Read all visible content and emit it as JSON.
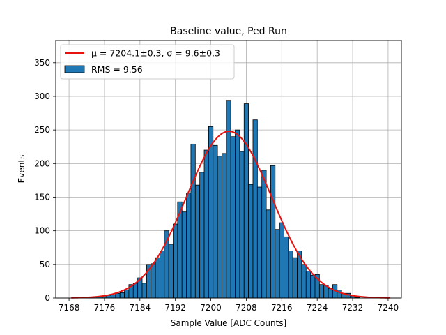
{
  "chart_data": {
    "type": "bar",
    "title": "Baseline value, Ped Run",
    "xlabel": "Sample Value [ADC Counts]",
    "ylabel": "Events",
    "xlim": [
      7165,
      7243
    ],
    "ylim": [
      0,
      383
    ],
    "xticks": [
      7168,
      7176,
      7184,
      7192,
      7200,
      7208,
      7216,
      7224,
      7232,
      7240
    ],
    "yticks": [
      0,
      50,
      100,
      150,
      200,
      250,
      300,
      350
    ],
    "grid": true,
    "legend_position": "upper-left",
    "colors": {
      "bars": "#1f77b4",
      "bar_edge": "#000000",
      "fit": "#e8130f",
      "grid": "#b0b0b0"
    },
    "histogram": {
      "name": "RMS = 9.56",
      "bin_width": 1,
      "bins": [
        {
          "x": 7170,
          "count": 1
        },
        {
          "x": 7171,
          "count": 1
        },
        {
          "x": 7172,
          "count": 1
        },
        {
          "x": 7173,
          "count": 1
        },
        {
          "x": 7174,
          "count": 2
        },
        {
          "x": 7175,
          "count": 2
        },
        {
          "x": 7176,
          "count": 3
        },
        {
          "x": 7177,
          "count": 4
        },
        {
          "x": 7178,
          "count": 5
        },
        {
          "x": 7179,
          "count": 7
        },
        {
          "x": 7180,
          "count": 8
        },
        {
          "x": 7181,
          "count": 12
        },
        {
          "x": 7182,
          "count": 20
        },
        {
          "x": 7183,
          "count": 22
        },
        {
          "x": 7184,
          "count": 30
        },
        {
          "x": 7185,
          "count": 22
        },
        {
          "x": 7186,
          "count": 50
        },
        {
          "x": 7187,
          "count": 51
        },
        {
          "x": 7188,
          "count": 60
        },
        {
          "x": 7189,
          "count": 70
        },
        {
          "x": 7190,
          "count": 100
        },
        {
          "x": 7191,
          "count": 80
        },
        {
          "x": 7192,
          "count": 110
        },
        {
          "x": 7193,
          "count": 143
        },
        {
          "x": 7194,
          "count": 128
        },
        {
          "x": 7195,
          "count": 156
        },
        {
          "x": 7196,
          "count": 229
        },
        {
          "x": 7197,
          "count": 168
        },
        {
          "x": 7198,
          "count": 187
        },
        {
          "x": 7199,
          "count": 220
        },
        {
          "x": 7200,
          "count": 255
        },
        {
          "x": 7201,
          "count": 227
        },
        {
          "x": 7202,
          "count": 211
        },
        {
          "x": 7203,
          "count": 215
        },
        {
          "x": 7204,
          "count": 294
        },
        {
          "x": 7205,
          "count": 240
        },
        {
          "x": 7206,
          "count": 250
        },
        {
          "x": 7207,
          "count": 218
        },
        {
          "x": 7208,
          "count": 289
        },
        {
          "x": 7209,
          "count": 169
        },
        {
          "x": 7210,
          "count": 265
        },
        {
          "x": 7211,
          "count": 165
        },
        {
          "x": 7212,
          "count": 190
        },
        {
          "x": 7213,
          "count": 131
        },
        {
          "x": 7214,
          "count": 197
        },
        {
          "x": 7215,
          "count": 102
        },
        {
          "x": 7216,
          "count": 112
        },
        {
          "x": 7217,
          "count": 91
        },
        {
          "x": 7218,
          "count": 70
        },
        {
          "x": 7219,
          "count": 60
        },
        {
          "x": 7220,
          "count": 70
        },
        {
          "x": 7221,
          "count": 50
        },
        {
          "x": 7222,
          "count": 40
        },
        {
          "x": 7223,
          "count": 34
        },
        {
          "x": 7224,
          "count": 35
        },
        {
          "x": 7225,
          "count": 20
        },
        {
          "x": 7226,
          "count": 19
        },
        {
          "x": 7227,
          "count": 14
        },
        {
          "x": 7228,
          "count": 20
        },
        {
          "x": 7229,
          "count": 12
        },
        {
          "x": 7230,
          "count": 7
        },
        {
          "x": 7231,
          "count": 7
        },
        {
          "x": 7232,
          "count": 3
        },
        {
          "x": 7233,
          "count": 1
        }
      ]
    },
    "fit": {
      "name": "μ = 7204.1±0.3, σ = 9.6±0.3",
      "type": "gaussian",
      "mu": 7204.1,
      "sigma": 9.6,
      "amplitude": 248,
      "x_range": [
        7168.5,
        7240.5
      ]
    }
  }
}
